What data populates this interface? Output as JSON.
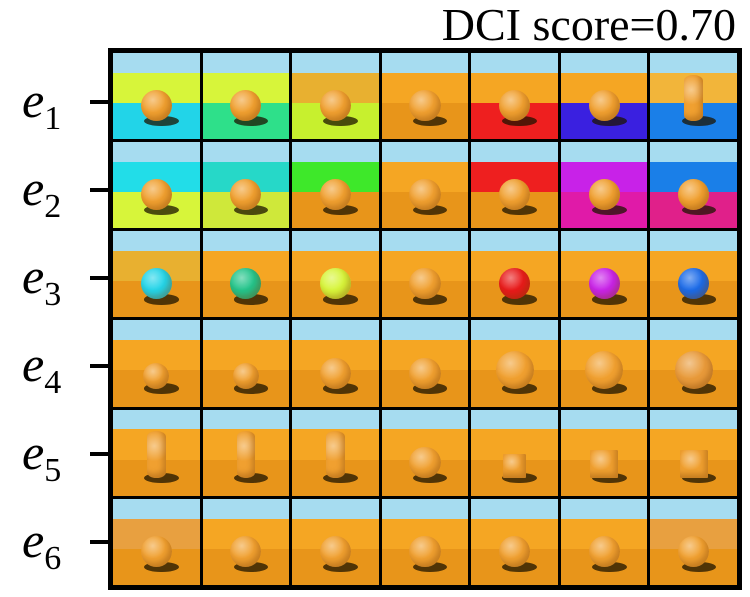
{
  "title": "DCI score=0.70",
  "colors": {
    "sky": "#a6dcf0",
    "wall_default": "#f5a623",
    "floor_default": "#e8951a",
    "object_default": "#f0a030"
  },
  "rows": [
    {
      "label": "e",
      "subscript": "1",
      "cells": [
        {
          "wall": "#d7f53a",
          "floor": "#22d4e8",
          "obj": "#f0a030",
          "shape": "sphere",
          "size": "medium"
        },
        {
          "wall": "#d7f53a",
          "floor": "#2ee08a",
          "obj": "#f0a030",
          "shape": "sphere",
          "size": "medium"
        },
        {
          "wall": "#e8b030",
          "floor": "#c7f02e",
          "obj": "#f0a030",
          "shape": "sphere",
          "size": "medium"
        },
        {
          "wall": "#f5a623",
          "floor": "#e8951a",
          "obj": "#f0a030",
          "shape": "sphere",
          "size": "medium"
        },
        {
          "wall": "#f5a623",
          "floor": "#ee1f1f",
          "obj": "#f0a030",
          "shape": "sphere",
          "size": "medium"
        },
        {
          "wall": "#f5a623",
          "floor": "#3a20e0",
          "obj": "#f0a030",
          "shape": "sphere",
          "size": "medium"
        },
        {
          "wall": "#f2b53a",
          "floor": "#1a7fe8",
          "obj": "#f0a030",
          "shape": "cylinder",
          "size": "medium"
        }
      ]
    },
    {
      "label": "e",
      "subscript": "2",
      "cells": [
        {
          "wall": "#22dde8",
          "floor": "#d7f53a",
          "obj": "#f0a030",
          "shape": "sphere",
          "size": "medium"
        },
        {
          "wall": "#26d8c8",
          "floor": "#cfe83a",
          "obj": "#f0a030",
          "shape": "sphere",
          "size": "medium"
        },
        {
          "wall": "#3ee82a",
          "floor": "#e8951a",
          "obj": "#f0a030",
          "shape": "sphere",
          "size": "medium"
        },
        {
          "wall": "#f5a623",
          "floor": "#e8951a",
          "obj": "#f0a030",
          "shape": "sphere",
          "size": "medium"
        },
        {
          "wall": "#ee1f1f",
          "floor": "#e8951a",
          "obj": "#f0a030",
          "shape": "sphere",
          "size": "medium"
        },
        {
          "wall": "#c822e8",
          "floor": "#e01aa8",
          "obj": "#f0a030",
          "shape": "sphere",
          "size": "medium"
        },
        {
          "wall": "#1a7fe8",
          "floor": "#e0208a",
          "obj": "#f0a030",
          "shape": "sphere",
          "size": "medium"
        }
      ]
    },
    {
      "label": "e",
      "subscript": "3",
      "cells": [
        {
          "wall": "#e8b030",
          "floor": "#e8951a",
          "obj": "#22d4e8",
          "shape": "sphere",
          "size": "medium"
        },
        {
          "wall": "#f5a623",
          "floor": "#e8951a",
          "obj": "#22c48a",
          "shape": "sphere",
          "size": "medium"
        },
        {
          "wall": "#f5a623",
          "floor": "#e8951a",
          "obj": "#d7f53a",
          "shape": "sphere",
          "size": "medium"
        },
        {
          "wall": "#f5a623",
          "floor": "#e8951a",
          "obj": "#f0a030",
          "shape": "sphere",
          "size": "medium"
        },
        {
          "wall": "#f5a623",
          "floor": "#e8951a",
          "obj": "#e81a1a",
          "shape": "sphere",
          "size": "medium"
        },
        {
          "wall": "#f5a623",
          "floor": "#e8951a",
          "obj": "#c822e8",
          "shape": "sphere",
          "size": "medium"
        },
        {
          "wall": "#f5a623",
          "floor": "#e8951a",
          "obj": "#1a6ae8",
          "shape": "sphere",
          "size": "medium"
        }
      ]
    },
    {
      "label": "e",
      "subscript": "4",
      "cells": [
        {
          "wall": "#f5a623",
          "floor": "#e8951a",
          "obj": "#f0a030",
          "shape": "sphere",
          "size": "small"
        },
        {
          "wall": "#f5a623",
          "floor": "#e8951a",
          "obj": "#f0a030",
          "shape": "sphere",
          "size": "small"
        },
        {
          "wall": "#f5a623",
          "floor": "#e8951a",
          "obj": "#f0a030",
          "shape": "sphere",
          "size": "medium"
        },
        {
          "wall": "#f5a623",
          "floor": "#e8951a",
          "obj": "#f0a030",
          "shape": "sphere",
          "size": "medium"
        },
        {
          "wall": "#f5a623",
          "floor": "#e8951a",
          "obj": "#f0a030",
          "shape": "sphere",
          "size": "large"
        },
        {
          "wall": "#f5a623",
          "floor": "#e8951a",
          "obj": "#f0a030",
          "shape": "sphere",
          "size": "large"
        },
        {
          "wall": "#f5a623",
          "floor": "#e8951a",
          "obj": "#e89a3a",
          "shape": "sphere",
          "size": "large"
        }
      ]
    },
    {
      "label": "e",
      "subscript": "5",
      "cells": [
        {
          "wall": "#f5a623",
          "floor": "#e8951a",
          "obj": "#f0a030",
          "shape": "cylinder",
          "size": "medium"
        },
        {
          "wall": "#f5a623",
          "floor": "#e8951a",
          "obj": "#f0a030",
          "shape": "cylinder",
          "size": "medium"
        },
        {
          "wall": "#f5a623",
          "floor": "#e8951a",
          "obj": "#f0a030",
          "shape": "cylinder",
          "size": "medium"
        },
        {
          "wall": "#f5a623",
          "floor": "#e8951a",
          "obj": "#f0a030",
          "shape": "sphere",
          "size": "medium"
        },
        {
          "wall": "#f5a623",
          "floor": "#e8951a",
          "obj": "#f0a030",
          "shape": "cube",
          "size": "small"
        },
        {
          "wall": "#f5a623",
          "floor": "#e8951a",
          "obj": "#f0a030",
          "shape": "cube",
          "size": "medium"
        },
        {
          "wall": "#f5a623",
          "floor": "#e8951a",
          "obj": "#f0a030",
          "shape": "cube",
          "size": "medium"
        }
      ]
    },
    {
      "label": "e",
      "subscript": "6",
      "cells": [
        {
          "wall": "#e8a040",
          "floor": "#e8951a",
          "obj": "#f0a030",
          "shape": "sphere",
          "size": "medium"
        },
        {
          "wall": "#f5a623",
          "floor": "#e8951a",
          "obj": "#f0a030",
          "shape": "sphere",
          "size": "medium"
        },
        {
          "wall": "#f5a623",
          "floor": "#e8951a",
          "obj": "#f0a030",
          "shape": "sphere",
          "size": "medium"
        },
        {
          "wall": "#f5a623",
          "floor": "#e8951a",
          "obj": "#f0a030",
          "shape": "sphere",
          "size": "medium"
        },
        {
          "wall": "#f5a623",
          "floor": "#e8951a",
          "obj": "#f0a030",
          "shape": "sphere",
          "size": "medium"
        },
        {
          "wall": "#f5a623",
          "floor": "#e8951a",
          "obj": "#f0a030",
          "shape": "sphere",
          "size": "medium"
        },
        {
          "wall": "#e8a040",
          "floor": "#e8951a",
          "obj": "#f0a030",
          "shape": "sphere",
          "size": "medium"
        }
      ]
    }
  ]
}
